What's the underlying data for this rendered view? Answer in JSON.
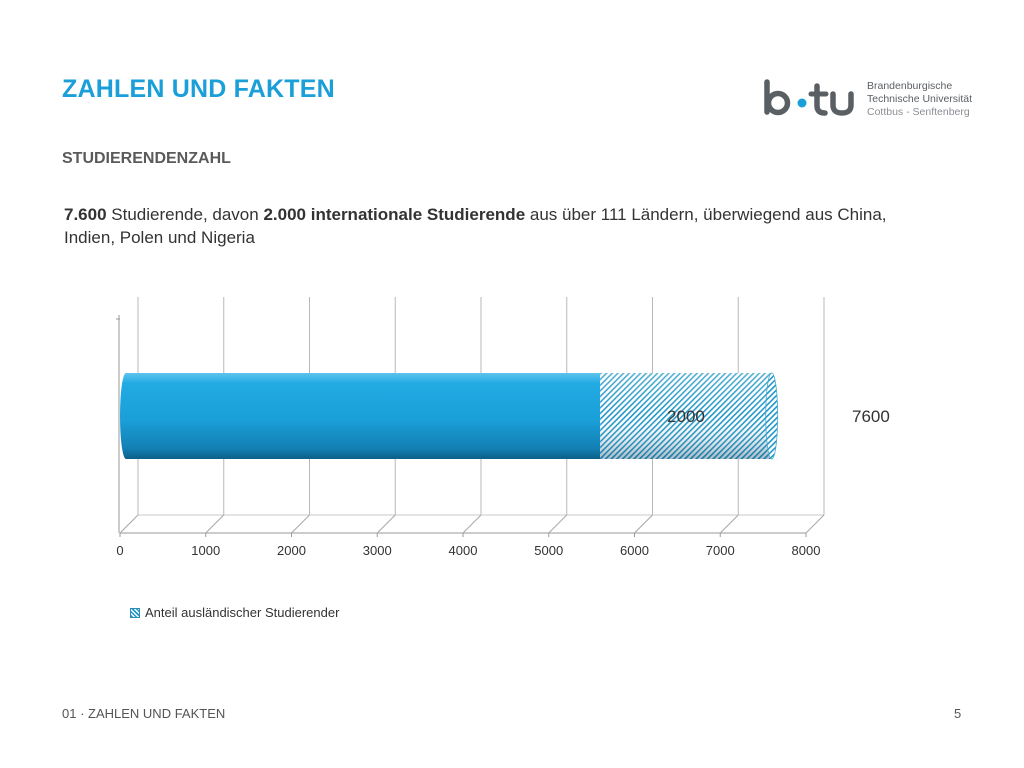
{
  "slide": {
    "title": "ZAHLEN UND FAKTEN",
    "subtitle": "STUDIERENDENZAHL",
    "description": {
      "part1_bold": "7.600",
      "part2": " Studierende, davon ",
      "part3_bold": "2.000 internationale Studierende",
      "part4": " aus über 111 Ländern, überwiegend aus China, Indien, Polen und Nigeria"
    },
    "footer_section": "01 · ZAHLEN UND FAKTEN",
    "page_number": "5"
  },
  "logo": {
    "mark": "b-tu",
    "line1": "Brandenburgische",
    "line2": "Technische Universität",
    "line3": "Cottbus - Senftenberg"
  },
  "colors": {
    "accent": "#1a9fd8",
    "bar_main": "#1a9fd8",
    "bar_hatch": "#2196c7"
  },
  "chart_data": {
    "type": "bar",
    "orientation": "horizontal",
    "stacked": true,
    "three_d": true,
    "xlim": [
      0,
      8000
    ],
    "x_ticks": [
      "0",
      "1000",
      "2000",
      "3000",
      "4000",
      "5000",
      "6000",
      "7000",
      "8000"
    ],
    "total": 7600,
    "total_label": "7600",
    "series": [
      {
        "value": 5600
      },
      {
        "name": "Anteil ausländischer Studierender",
        "value": 2000,
        "label": "2000"
      }
    ],
    "legend": "bottom-left",
    "grid": true
  }
}
